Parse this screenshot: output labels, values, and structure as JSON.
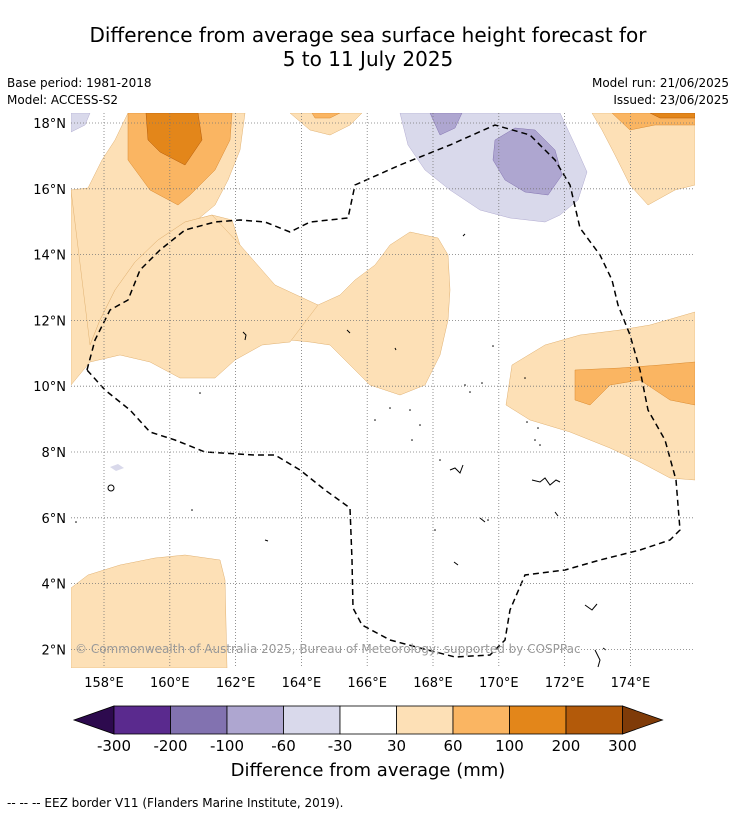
{
  "title_line1": "Difference from average sea surface height forecast for",
  "title_line2": "5 to 11 July 2025",
  "base_period": "Base period: 1981-2018",
  "model": "Model: ACCESS-S2",
  "model_run": "Model run: 21/06/2025",
  "issued": "Issued: 23/06/2025",
  "lon_ticks": [
    "158°E",
    "160°E",
    "162°E",
    "164°E",
    "166°E",
    "168°E",
    "170°E",
    "172°E",
    "174°E"
  ],
  "lat_ticks": [
    "18°N",
    "16°N",
    "14°N",
    "12°N",
    "10°N",
    "8°N",
    "6°N",
    "4°N",
    "2°N"
  ],
  "copyright": "© Commonwealth of Australia 2025, Bureau of Meteorology; supported by COSPPac",
  "colorbar": {
    "ticks": [
      "-300",
      "-200",
      "-100",
      "-60",
      "-30",
      "30",
      "60",
      "100",
      "200",
      "300"
    ],
    "colors": [
      "#5a2a8e",
      "#8272b0",
      "#aea6d0",
      "#d9d9eb",
      "#ffffff",
      "#fde0b6",
      "#fab562",
      "#e3861a",
      "#b35a0a"
    ],
    "under_color": "#2d0a4e",
    "over_color": "#7f3b08",
    "label": "Difference from average (mm)"
  },
  "footer": "--  --  -- EEZ border V11 (Flanders Marine Institute, 2019)."
}
